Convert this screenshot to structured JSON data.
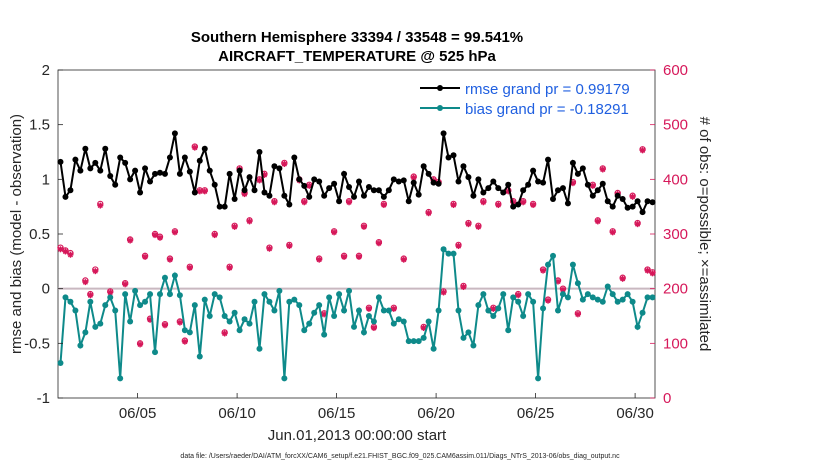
{
  "chart_data": {
    "type": "line",
    "title": "Southern Hemisphere 33394 / 33548 = 99.541%",
    "subtitle": "AIRCRAFT_TEMPERATURE @ 525 hPa",
    "xlabel": "Jun.01,2013 00:00:00 start",
    "ylabel": "rmse and bias (model - observation)",
    "ylabel_right": "# of obs: o=possible; ×=assimilated",
    "xlim": [
      1,
      31
    ],
    "ylim": [
      -1,
      2
    ],
    "ylim_right": [
      0,
      600
    ],
    "xticks": [
      5,
      10,
      15,
      20,
      25,
      30
    ],
    "xtick_labels": [
      "06/05",
      "06/10",
      "06/15",
      "06/20",
      "06/25",
      "06/30"
    ],
    "yticks": [
      -1,
      -0.5,
      0,
      0.5,
      1,
      1.5,
      2
    ],
    "ytick_labels": [
      "-1",
      "-0.5",
      "0",
      "0.5",
      "1",
      "1.5",
      "2"
    ],
    "yticks_right": [
      0,
      100,
      200,
      300,
      400,
      500,
      600
    ],
    "ytick_labels_right": [
      "0",
      "100",
      "200",
      "300",
      "400",
      "500",
      "600"
    ],
    "zero_line": 0,
    "legend": {
      "position": "top-right",
      "entries": [
        "rmse grand pr = 0.99179",
        "bias grand pr = -0.18291"
      ]
    },
    "footer": "data file: /Users/raeder/DAI/ATM_forcXX/CAM6_setup/f.e21.FHIST_BGC.f09_025.CAM6assim.011/Diags_NTrS_2013-06/obs_diag_output.nc",
    "colors": {
      "rmse": "#000000",
      "bias": "#0e8a8a",
      "obs": "#d6185a",
      "zero": "#c9b8c0"
    },
    "series": [
      {
        "name": "rmse grand pr = 0.99179",
        "axis": "left",
        "x": [
          1.125,
          1.375,
          1.625,
          1.875,
          2.125,
          2.375,
          2.625,
          2.875,
          3.125,
          3.375,
          3.625,
          3.875,
          4.125,
          4.375,
          4.625,
          4.875,
          5.125,
          5.375,
          5.625,
          5.875,
          6.125,
          6.375,
          6.625,
          6.875,
          7.125,
          7.375,
          7.625,
          7.875,
          8.125,
          8.375,
          8.625,
          8.875,
          9.125,
          9.375,
          9.625,
          9.875,
          10.125,
          10.375,
          10.625,
          10.875,
          11.125,
          11.375,
          11.625,
          11.875,
          12.125,
          12.375,
          12.625,
          12.875,
          13.125,
          13.375,
          13.625,
          13.875,
          14.125,
          14.375,
          14.625,
          14.875,
          15.125,
          15.375,
          15.625,
          15.875,
          16.125,
          16.375,
          16.625,
          16.875,
          17.125,
          17.375,
          17.625,
          17.875,
          18.125,
          18.375,
          18.625,
          18.875,
          19.125,
          19.375,
          19.625,
          19.875,
          20.125,
          20.375,
          20.625,
          20.875,
          21.125,
          21.375,
          21.625,
          21.875,
          22.125,
          22.375,
          22.625,
          22.875,
          23.125,
          23.375,
          23.625,
          23.875,
          24.125,
          24.375,
          24.625,
          24.875,
          25.125,
          25.375,
          25.625,
          25.875,
          26.125,
          26.375,
          26.625,
          26.875,
          27.125,
          27.375,
          27.625,
          27.875,
          28.125,
          28.375,
          28.625,
          28.875,
          29.125,
          29.375,
          29.625,
          29.875,
          30.125,
          30.375,
          30.625,
          30.875
        ],
        "values": [
          1.16,
          0.84,
          0.9,
          1.18,
          1.08,
          1.28,
          1.1,
          1.15,
          1.08,
          1.28,
          1.03,
          0.95,
          1.2,
          1.15,
          1.0,
          1.08,
          0.88,
          1.1,
          0.98,
          1.05,
          1.06,
          1.05,
          1.2,
          1.42,
          1.05,
          1.2,
          1.07,
          0.88,
          1.17,
          1.28,
          1.08,
          0.95,
          0.75,
          0.75,
          1.05,
          0.82,
          1.08,
          0.9,
          1.02,
          0.9,
          1.25,
          0.88,
          0.85,
          1.12,
          1.1,
          0.85,
          0.77,
          1.2,
          1.0,
          0.94,
          0.84,
          1.0,
          0.98,
          0.85,
          0.92,
          0.96,
          0.8,
          1.05,
          0.93,
          0.84,
          0.98,
          0.85,
          0.93,
          0.9,
          0.9,
          0.84,
          0.9,
          1.0,
          0.98,
          0.99,
          0.8,
          0.97,
          0.86,
          1.12,
          1.05,
          0.97,
          0.96,
          1.42,
          1.2,
          1.22,
          0.98,
          1.12,
          1.02,
          0.85,
          1.0,
          0.88,
          0.92,
          0.98,
          0.92,
          0.88,
          0.95,
          0.75,
          0.77,
          0.9,
          0.95,
          1.08,
          0.98,
          0.97,
          1.18,
          0.82,
          0.9,
          0.92,
          0.78,
          1.15,
          1.05,
          1.1,
          0.95,
          0.85,
          0.9,
          0.96,
          0.8,
          0.75,
          0.85,
          0.82,
          0.74,
          0.75,
          0.8,
          0.7,
          0.8,
          0.79
        ]
      },
      {
        "name": "bias grand pr = -0.18291",
        "axis": "left",
        "x": [
          1.125,
          1.375,
          1.625,
          1.875,
          2.125,
          2.375,
          2.625,
          2.875,
          3.125,
          3.375,
          3.625,
          3.875,
          4.125,
          4.375,
          4.625,
          4.875,
          5.125,
          5.375,
          5.625,
          5.875,
          6.125,
          6.375,
          6.625,
          6.875,
          7.125,
          7.375,
          7.625,
          7.875,
          8.125,
          8.375,
          8.625,
          8.875,
          9.125,
          9.375,
          9.625,
          9.875,
          10.125,
          10.375,
          10.625,
          10.875,
          11.125,
          11.375,
          11.625,
          11.875,
          12.125,
          12.375,
          12.625,
          12.875,
          13.125,
          13.375,
          13.625,
          13.875,
          14.125,
          14.375,
          14.625,
          14.875,
          15.125,
          15.375,
          15.625,
          15.875,
          16.125,
          16.375,
          16.625,
          16.875,
          17.125,
          17.375,
          17.625,
          17.875,
          18.125,
          18.375,
          18.625,
          18.875,
          19.125,
          19.375,
          19.625,
          19.875,
          20.125,
          20.375,
          20.625,
          20.875,
          21.125,
          21.375,
          21.625,
          21.875,
          22.125,
          22.375,
          22.625,
          22.875,
          23.125,
          23.375,
          23.625,
          23.875,
          24.125,
          24.375,
          24.625,
          24.875,
          25.125,
          25.375,
          25.625,
          25.875,
          26.125,
          26.375,
          26.625,
          26.875,
          27.125,
          27.375,
          27.625,
          27.875,
          28.125,
          28.375,
          28.625,
          28.875,
          29.125,
          29.375,
          29.625,
          29.875,
          30.125,
          30.375,
          30.625,
          30.875
        ],
        "values": [
          -0.68,
          -0.08,
          -0.12,
          -0.2,
          -0.52,
          -0.4,
          -0.12,
          -0.35,
          -0.32,
          -0.15,
          -0.08,
          -0.2,
          -0.82,
          -0.05,
          -0.3,
          -0.02,
          -0.15,
          -0.12,
          -0.05,
          -0.58,
          -0.05,
          0.1,
          -0.05,
          0.12,
          -0.06,
          -0.38,
          -0.4,
          -0.15,
          -0.62,
          -0.1,
          -0.25,
          -0.05,
          -0.08,
          -0.25,
          -0.3,
          -0.22,
          -0.38,
          -0.28,
          -0.32,
          -0.12,
          -0.55,
          -0.05,
          -0.12,
          -0.2,
          -0.02,
          -0.82,
          -0.12,
          -0.1,
          -0.15,
          -0.38,
          -0.32,
          -0.22,
          -0.15,
          -0.42,
          -0.08,
          -0.25,
          -0.05,
          -0.2,
          -0.02,
          -0.35,
          -0.2,
          -0.4,
          -0.25,
          -0.3,
          -0.08,
          -0.2,
          -0.2,
          -0.32,
          -0.28,
          -0.3,
          -0.48,
          -0.48,
          -0.48,
          -0.45,
          -0.3,
          -0.55,
          -0.2,
          0.36,
          0.32,
          0.32,
          -0.2,
          -0.45,
          -0.4,
          -0.52,
          -0.15,
          -0.05,
          -0.2,
          -0.25,
          -0.18,
          -0.05,
          -0.38,
          -0.08,
          -0.12,
          -0.25,
          -0.05,
          -0.12,
          -0.82,
          -0.18,
          0.22,
          0.3,
          -0.2,
          -0.05,
          -0.08,
          0.22,
          0.05,
          -0.1,
          -0.05,
          -0.08,
          -0.1,
          -0.12,
          0.02,
          -0.05,
          -0.12,
          -0.1,
          -0.05,
          -0.12,
          -0.35,
          -0.22,
          -0.08,
          -0.08
        ]
      },
      {
        "name": "obs possible",
        "axis": "right",
        "marker": "o",
        "x": [
          1.125,
          1.375,
          1.625,
          2.375,
          2.625,
          2.875,
          3.125,
          3.625,
          4.375,
          4.625,
          5.125,
          5.375,
          5.625,
          5.875,
          6.125,
          6.375,
          6.625,
          6.875,
          7.125,
          7.375,
          7.625,
          7.875,
          8.125,
          8.375,
          8.875,
          9.375,
          9.625,
          9.875,
          10.125,
          10.375,
          10.625,
          11.125,
          11.375,
          11.625,
          11.875,
          12.375,
          12.625,
          13.125,
          13.375,
          13.625,
          14.125,
          14.375,
          14.875,
          15.375,
          15.625,
          16.125,
          16.375,
          16.625,
          16.875,
          17.125,
          17.375,
          17.875,
          18.375,
          18.875,
          19.375,
          19.625,
          19.875,
          20.125,
          20.375,
          20.875,
          21.125,
          21.375,
          21.625,
          22.125,
          22.375,
          22.875,
          23.125,
          23.625,
          23.875,
          24.125,
          24.375,
          24.875,
          25.375,
          25.625,
          26.125,
          26.375,
          26.875,
          27.125,
          27.875,
          28.125,
          28.375,
          28.875,
          29.125,
          29.375,
          29.875,
          30.125,
          30.375,
          30.625,
          30.875
        ],
        "values": [
          275,
          270,
          265,
          215,
          190,
          235,
          355,
          195,
          210,
          290,
          100,
          260,
          145,
          300,
          295,
          135,
          255,
          305,
          140,
          105,
          240,
          460,
          380,
          380,
          300,
          120,
          240,
          315,
          420,
          375,
          325,
          400,
          410,
          275,
          360,
          430,
          280,
          400,
          360,
          390,
          255,
          155,
          305,
          260,
          360,
          260,
          315,
          165,
          130,
          285,
          355,
          165,
          255,
          405,
          130,
          340,
          400,
          395,
          195,
          355,
          280,
          205,
          320,
          315,
          360,
          165,
          355,
          380,
          360,
          190,
          360,
          355,
          235,
          180,
          215,
          200,
          395,
          155,
          390,
          325,
          420,
          305,
          375,
          220,
          370,
          320,
          455,
          235,
          230
        ],
        "scaling_note": "right-axis counts"
      },
      {
        "name": "obs assimilated",
        "axis": "right",
        "marker": "x",
        "x": [
          1.125,
          1.375,
          1.625,
          2.375,
          2.625,
          2.875,
          3.125,
          3.625,
          4.375,
          4.625,
          5.125,
          5.375,
          5.625,
          5.875,
          6.125,
          6.375,
          6.625,
          6.875,
          7.125,
          7.375,
          7.625,
          7.875,
          8.125,
          8.375,
          8.875,
          9.375,
          9.625,
          9.875,
          10.125,
          10.375,
          10.625,
          11.125,
          11.375,
          11.625,
          11.875,
          12.375,
          12.625,
          13.125,
          13.375,
          13.625,
          14.125,
          14.375,
          14.875,
          15.375,
          15.625,
          16.125,
          16.375,
          16.625,
          16.875,
          17.125,
          17.375,
          17.875,
          18.375,
          18.875,
          19.375,
          19.625,
          19.875,
          20.125,
          20.375,
          20.875,
          21.125,
          21.375,
          21.625,
          22.125,
          22.375,
          22.875,
          23.125,
          23.625,
          23.875,
          24.125,
          24.375,
          24.875,
          25.375,
          25.625,
          26.125,
          26.375,
          26.875,
          27.125,
          27.875,
          28.125,
          28.375,
          28.875,
          29.125,
          29.375,
          29.875,
          30.125,
          30.375,
          30.625,
          30.875
        ],
        "values": [
          272,
          268,
          262,
          212,
          188,
          232,
          352,
          193,
          208,
          288,
          98,
          258,
          143,
          298,
          293,
          133,
          253,
          303,
          138,
          103,
          238,
          458,
          378,
          378,
          298,
          118,
          238,
          313,
          418,
          373,
          323,
          398,
          408,
          273,
          358,
          428,
          278,
          398,
          358,
          388,
          253,
          153,
          303,
          258,
          358,
          258,
          313,
          163,
          128,
          283,
          353,
          163,
          253,
          403,
          128,
          338,
          398,
          393,
          193,
          353,
          278,
          203,
          318,
          313,
          358,
          163,
          353,
          378,
          358,
          188,
          358,
          353,
          233,
          178,
          213,
          198,
          393,
          153,
          388,
          323,
          418,
          303,
          373,
          218,
          368,
          318,
          453,
          233,
          228
        ]
      }
    ]
  }
}
